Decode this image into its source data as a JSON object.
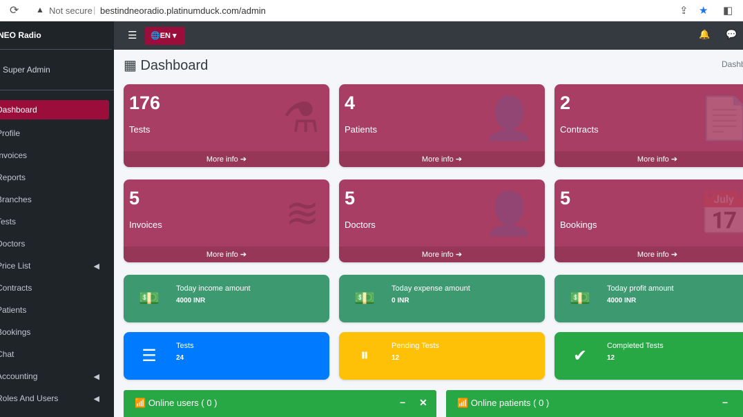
{
  "browser": {
    "security": "Not secure",
    "url": "bestindneoradio.platinumduck.com/admin"
  },
  "sidebar": {
    "brand": "NEO Radio",
    "user": "Super Admin",
    "items": [
      {
        "label": "Dashboard",
        "active": true
      },
      {
        "label": "Profile"
      },
      {
        "label": "Invoices"
      },
      {
        "label": "Reports"
      },
      {
        "label": "Branches"
      },
      {
        "label": "Tests"
      },
      {
        "label": "Doctors"
      },
      {
        "label": "Price List",
        "chevron": true
      },
      {
        "label": "Contracts"
      },
      {
        "label": "Patients"
      },
      {
        "label": "Bookings"
      },
      {
        "label": "Chat"
      },
      {
        "label": "Accounting",
        "chevron": true
      },
      {
        "label": "Roles And Users",
        "chevron": true
      }
    ]
  },
  "topnav": {
    "lang": "EN"
  },
  "page": {
    "title": "Dashboard",
    "breadcrumb": "Dashb"
  },
  "boxes": [
    {
      "num": "176",
      "label": "Tests",
      "icon": "flask-icon",
      "more": "More info"
    },
    {
      "num": "4",
      "label": "Patients",
      "icon": "user-injured-icon",
      "more": "More info"
    },
    {
      "num": "2",
      "label": "Contracts",
      "icon": "file-contract-icon",
      "more": "More info"
    },
    {
      "num": "5",
      "label": "Invoices",
      "icon": "layers-icon",
      "more": "More info"
    },
    {
      "num": "5",
      "label": "Doctors",
      "icon": "user-md-icon",
      "more": "More info"
    },
    {
      "num": "5",
      "label": "Bookings",
      "icon": "calendar-icon",
      "more": "More info"
    }
  ],
  "info": [
    {
      "title": "Today income amount",
      "value": "4000 INR",
      "color": "#3d9970"
    },
    {
      "title": "Today expense amount",
      "value": "0 INR",
      "color": "#3d9970"
    },
    {
      "title": "Today profit amount",
      "value": "4000 INR",
      "color": "#3d9970"
    },
    {
      "title": "Tests",
      "value": "24",
      "color": "#007bff"
    },
    {
      "title": "Pending Tests",
      "value": "12",
      "color": "#ffc107"
    },
    {
      "title": "Completed Tests",
      "value": "12",
      "color": "#28a745"
    }
  ],
  "cards": [
    {
      "title": "Online users ( 0 )"
    },
    {
      "title": "Online patients ( 0 )"
    }
  ],
  "colors": {
    "accent": "#9b0d3a",
    "box": "#a83e63"
  }
}
